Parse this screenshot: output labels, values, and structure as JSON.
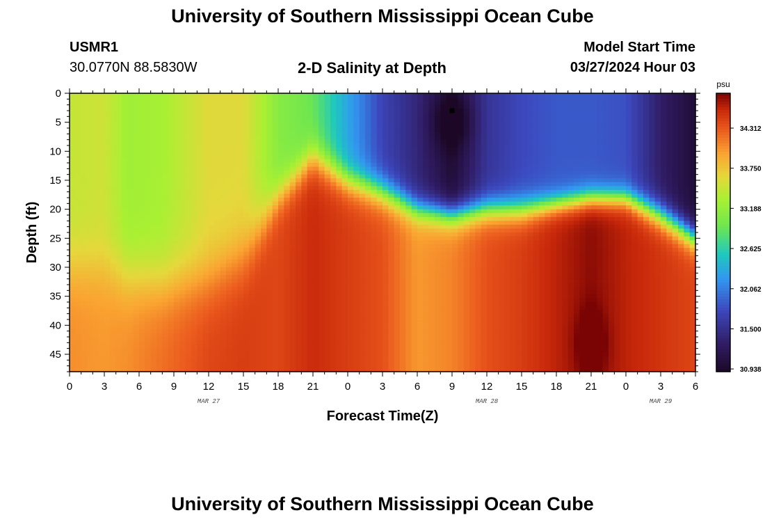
{
  "header": {
    "title": "University of Southern Mississippi Ocean Cube",
    "station_id": "USMR1",
    "station_coords": "30.0770N  88.5830W",
    "chart_title": "2-D Salinity at Depth",
    "model_start_label": "Model Start Time",
    "model_start_value": "03/27/2024 Hour 03"
  },
  "footer": {
    "title": "University of Southern Mississippi Ocean Cube"
  },
  "chart_data": {
    "type": "heatmap",
    "title": "2-D Salinity at Depth",
    "xlabel": "Forecast Time(Z)",
    "ylabel": "Depth (ft)",
    "x_tick_labels": [
      "0",
      "3",
      "6",
      "9",
      "12",
      "15",
      "18",
      "21",
      "0",
      "3",
      "6",
      "9",
      "12",
      "15",
      "18",
      "21",
      "0",
      "3",
      "6"
    ],
    "x_hours": [
      0,
      3,
      6,
      9,
      12,
      15,
      18,
      21,
      24,
      27,
      30,
      33,
      36,
      39,
      42,
      45,
      48,
      51,
      54
    ],
    "day_labels": [
      {
        "label": "MAR 27",
        "hour": 12
      },
      {
        "label": "MAR 28",
        "hour": 36
      },
      {
        "label": "MAR 29",
        "hour": 51
      }
    ],
    "xlim": [
      0,
      54
    ],
    "y_ticks": [
      0,
      5,
      10,
      15,
      20,
      25,
      30,
      35,
      40,
      45
    ],
    "ylim": [
      0,
      48
    ],
    "colorbar": {
      "unit": "psu",
      "tick_values": [
        "34.312",
        "33.750",
        "33.188",
        "32.625",
        "32.062",
        "31.500",
        "30.938"
      ],
      "range": [
        30.9,
        34.8
      ]
    },
    "marker": {
      "hour": 33,
      "depth": 3
    },
    "profiles": [
      {
        "hour": 0,
        "top": 33.45,
        "interface": 30,
        "bottom": 34.05,
        "width": 14
      },
      {
        "hour": 3,
        "top": 33.5,
        "interface": 30,
        "bottom": 34.0,
        "width": 14
      },
      {
        "hour": 5,
        "top": 33.25,
        "interface": 32,
        "bottom": 34.05,
        "width": 14
      },
      {
        "hour": 8,
        "top": 33.3,
        "interface": 33,
        "bottom": 34.2,
        "width": 14
      },
      {
        "hour": 12,
        "top": 33.6,
        "interface": 32,
        "bottom": 34.4,
        "width": 14
      },
      {
        "hour": 15,
        "top": 33.6,
        "interface": 28,
        "bottom": 34.45,
        "width": 14
      },
      {
        "hour": 18,
        "top": 33.1,
        "interface": 18,
        "bottom": 34.4,
        "width": 8
      },
      {
        "hour": 21,
        "top": 32.9,
        "interface": 11,
        "bottom": 34.55,
        "width": 8
      },
      {
        "hour": 24,
        "top": 32.3,
        "interface": 15,
        "bottom": 34.45,
        "width": 7
      },
      {
        "hour": 27,
        "top": 31.7,
        "interface": 17,
        "bottom": 34.35,
        "width": 7
      },
      {
        "hour": 30,
        "top": 31.4,
        "interface": 20,
        "bottom": 34.0,
        "width": 6
      },
      {
        "hour": 33,
        "top": 31.0,
        "interface": 21,
        "bottom": 34.1,
        "width": 6
      },
      {
        "hour": 36,
        "top": 31.55,
        "interface": 20,
        "bottom": 34.35,
        "width": 6
      },
      {
        "hour": 39,
        "top": 31.75,
        "interface": 20,
        "bottom": 34.45,
        "width": 6
      },
      {
        "hour": 42,
        "top": 31.85,
        "interface": 19,
        "bottom": 34.6,
        "width": 5
      },
      {
        "hour": 45,
        "top": 31.85,
        "interface": 18,
        "bottom": 34.75,
        "width": 5
      },
      {
        "hour": 48,
        "top": 31.8,
        "interface": 18,
        "bottom": 34.6,
        "width": 5
      },
      {
        "hour": 51,
        "top": 31.3,
        "interface": 21,
        "bottom": 34.5,
        "width": 6
      },
      {
        "hour": 54,
        "top": 31.0,
        "interface": 25,
        "bottom": 34.4,
        "width": 6
      }
    ]
  }
}
